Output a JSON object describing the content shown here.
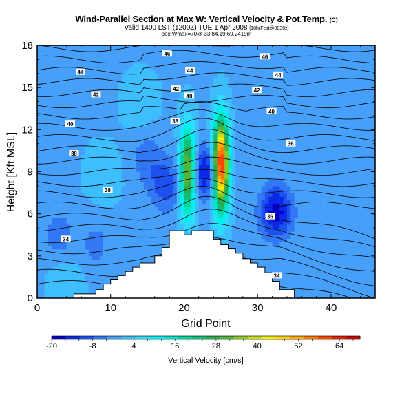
{
  "titles": {
    "title": "Wind-Parallel Section at Max W: Vertical Velocity & Pot.Temp.",
    "title_mark": "(C)",
    "subtitle_main": "Valid 1400 LST (1200Z) TUE 1 Apr 2008",
    "subtitle_small": "[18hrFcst@0030z]",
    "info": "box Wmax=70@ 33.84,19.69,2419m"
  },
  "chart_data": {
    "type": "heatmap",
    "xlabel": "Grid Point",
    "ylabel": "Height [Kft MSL]",
    "xlim": [
      0,
      46
    ],
    "ylim": [
      0,
      18
    ],
    "x_ticks": [
      "0",
      "10",
      "20",
      "30",
      "40"
    ],
    "y_ticks": [
      "0",
      "3",
      "6",
      "9",
      "12",
      "15",
      "18"
    ],
    "colorbar": {
      "label": "Vertical Velocity [cm/s]",
      "tick_labels": [
        "-20",
        "-8",
        "4",
        "16",
        "28",
        "40",
        "52",
        "64"
      ],
      "min": -20,
      "max": 70,
      "colors": [
        "#0000c8",
        "#0a28e6",
        "#1e50f0",
        "#3278f5",
        "#46a0fa",
        "#3cbeff",
        "#2ddcff",
        "#00f0f0",
        "#00e6c8",
        "#00d2a0",
        "#10be78",
        "#28aa50",
        "#50b43c",
        "#8cc828",
        "#c8dc1e",
        "#f0f000",
        "#ffd200",
        "#ffaa00",
        "#ff7800",
        "#ff4600",
        "#e61e00",
        "#c80000"
      ]
    },
    "terrain": {
      "x": [
        0,
        5,
        5,
        8,
        8,
        9,
        9,
        10,
        10,
        11,
        11,
        12,
        12,
        13,
        13,
        14,
        14,
        16,
        16,
        17,
        17,
        18,
        18,
        20,
        20,
        21,
        21,
        24,
        24,
        25,
        25,
        26,
        26,
        27,
        27,
        28,
        28,
        29,
        29,
        30,
        30,
        31,
        31,
        32,
        32,
        33,
        33,
        35,
        35,
        46
      ],
      "z": [
        0,
        0,
        0.3,
        0.3,
        0.6,
        0.6,
        1.0,
        1.0,
        1.3,
        1.3,
        1.6,
        1.6,
        1.9,
        1.9,
        2.2,
        2.2,
        2.5,
        2.5,
        3.0,
        3.0,
        3.6,
        3.6,
        4.8,
        4.8,
        4.5,
        4.5,
        4.8,
        4.8,
        4.2,
        4.2,
        3.8,
        3.8,
        3.5,
        3.5,
        3.2,
        3.2,
        2.8,
        2.8,
        2.5,
        2.5,
        2.2,
        2.2,
        1.8,
        1.8,
        1.2,
        1.2,
        0.6,
        0.6,
        0,
        0
      ]
    },
    "velocity_features": [
      {
        "x": 25,
        "z": 9.5,
        "w": 70
      },
      {
        "x": 20.5,
        "z": 9.0,
        "w": 40
      },
      {
        "x": 23,
        "z": 9.0,
        "w": -16
      },
      {
        "x": 32.5,
        "z": 6.2,
        "w": -18
      },
      {
        "x": 17.5,
        "z": 8.0,
        "w": -10
      },
      {
        "x": 15,
        "z": 10.0,
        "w": -6
      },
      {
        "x": 3,
        "z": 4.5,
        "w": -6
      },
      {
        "x": 8,
        "z": 3.8,
        "w": -5
      },
      {
        "x": 9,
        "z": 8.8,
        "w": 4
      },
      {
        "x": 14,
        "z": 14.0,
        "w": 4
      },
      {
        "x": 4,
        "z": 1.2,
        "w": 4
      }
    ],
    "theta_contour_labels": [
      {
        "text": "46",
        "x": 17.7,
        "z": 17.4
      },
      {
        "text": "46",
        "x": 31.0,
        "z": 17.2
      },
      {
        "text": "44",
        "x": 5.9,
        "z": 16.1
      },
      {
        "text": "44",
        "x": 20.8,
        "z": 16.2
      },
      {
        "text": "44",
        "x": 32.8,
        "z": 15.9
      },
      {
        "text": "42",
        "x": 8.0,
        "z": 14.5
      },
      {
        "text": "42",
        "x": 18.9,
        "z": 14.9
      },
      {
        "text": "42",
        "x": 29.9,
        "z": 14.8
      },
      {
        "text": "40",
        "x": 20.7,
        "z": 14.4
      },
      {
        "text": "40",
        "x": 4.5,
        "z": 12.4
      },
      {
        "text": "40",
        "x": 31.9,
        "z": 13.3
      },
      {
        "text": "38",
        "x": 5.0,
        "z": 10.3
      },
      {
        "text": "38",
        "x": 9.6,
        "z": 7.7
      },
      {
        "text": "38",
        "x": 18.8,
        "z": 12.6
      },
      {
        "text": "36",
        "x": 34.5,
        "z": 11.0
      },
      {
        "text": "36",
        "x": 31.7,
        "z": 5.8
      },
      {
        "text": "34",
        "x": 3.9,
        "z": 4.2
      },
      {
        "text": "34",
        "x": 32.6,
        "z": 1.6
      }
    ]
  }
}
